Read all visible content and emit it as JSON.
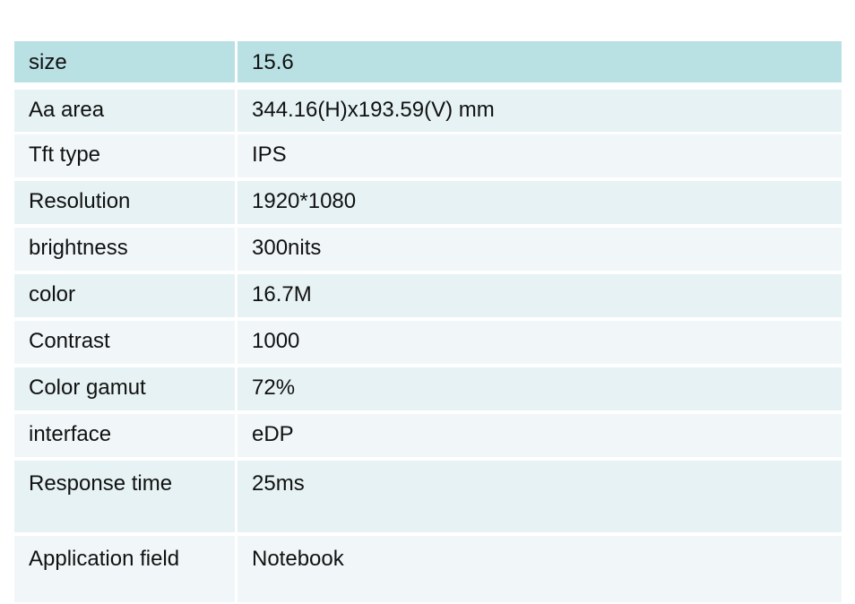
{
  "colors": {
    "header": "#b9e0e3",
    "row_odd": "#e6f2f3",
    "row_even": "#f1f7f9"
  },
  "rows": [
    {
      "label": "size",
      "value": "15.6"
    },
    {
      "label": "Aa area",
      "value": "344.16(H)x193.59(V) mm"
    },
    {
      "label": "Tft type",
      "value": "IPS"
    },
    {
      "label": "Resolution",
      "value": "1920*1080"
    },
    {
      "label": "brightness",
      "value": "300nits"
    },
    {
      "label": "color",
      "value": "16.7M"
    },
    {
      "label": "Contrast",
      "value": "1000"
    },
    {
      "label": "Color gamut",
      "value": "72%"
    },
    {
      "label": "interface",
      "value": "eDP"
    },
    {
      "label": "Response time",
      "value": "25ms"
    },
    {
      "label": "Application field",
      "value": "Notebook"
    }
  ]
}
